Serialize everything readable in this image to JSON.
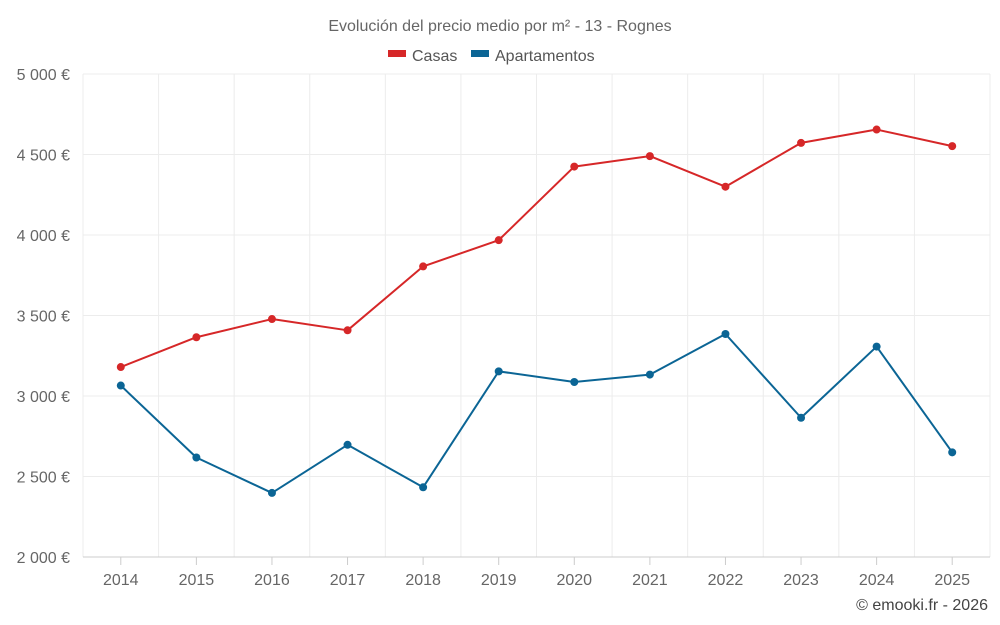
{
  "chart_data": {
    "type": "line",
    "title": "Evolución del precio medio por m² - 13 - Rognes",
    "categories": [
      "2014",
      "2015",
      "2016",
      "2017",
      "2018",
      "2019",
      "2020",
      "2021",
      "2022",
      "2023",
      "2024",
      "2025"
    ],
    "series": [
      {
        "name": "Casas",
        "color": "#d62728",
        "values": [
          3180,
          3365,
          3478,
          3408,
          3805,
          3968,
          4425,
          4490,
          4300,
          4572,
          4655,
          4552
        ]
      },
      {
        "name": "Apartamentos",
        "color": "#0b6595",
        "values": [
          3065,
          2618,
          2398,
          2697,
          2433,
          3153,
          3087,
          3133,
          3385,
          2865,
          3307,
          2650
        ]
      }
    ],
    "ylim": [
      2000,
      5000
    ],
    "yticks": [
      2000,
      2500,
      3000,
      3500,
      4000,
      4500,
      5000
    ],
    "ytick_labels": [
      "2 000 €",
      "2 500 €",
      "3 000 €",
      "3 500 €",
      "4 000 €",
      "4 500 €",
      "5 000 €"
    ],
    "xlabel": "",
    "ylabel": "",
    "grid": true,
    "legend_position": "top-center"
  },
  "credit": "© emooki.fr - 2026"
}
